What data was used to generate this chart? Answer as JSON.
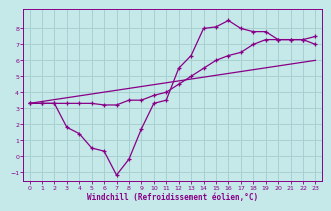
{
  "xlabel": "Windchill (Refroidissement éolien,°C)",
  "bg_color": "#c5e8e8",
  "line_color": "#880088",
  "grid_color": "#a8d0d0",
  "xlim": [
    -0.5,
    23.5
  ],
  "ylim": [
    -1.6,
    9.2
  ],
  "xticks": [
    0,
    1,
    2,
    3,
    4,
    5,
    6,
    7,
    8,
    9,
    10,
    11,
    12,
    13,
    14,
    15,
    16,
    17,
    18,
    19,
    20,
    21,
    22,
    23
  ],
  "yticks": [
    -1,
    0,
    1,
    2,
    3,
    4,
    5,
    6,
    7,
    8
  ],
  "series1_x": [
    0,
    1,
    2,
    3,
    4,
    5,
    6,
    7,
    8,
    9,
    10,
    11,
    12,
    13,
    14,
    15,
    16,
    17,
    18,
    19,
    20,
    21,
    22,
    23
  ],
  "series1_y": [
    3.3,
    3.3,
    3.3,
    1.8,
    1.4,
    0.5,
    0.3,
    -1.2,
    -0.2,
    1.7,
    3.3,
    3.5,
    5.5,
    6.3,
    8.0,
    8.1,
    8.5,
    8.0,
    7.8,
    7.8,
    7.3,
    7.3,
    7.3,
    7.0
  ],
  "series2_x": [
    0,
    1,
    2,
    3,
    4,
    5,
    6,
    7,
    8,
    9,
    10,
    11,
    12,
    13,
    14,
    15,
    16,
    17,
    18,
    19,
    20,
    21,
    22,
    23
  ],
  "series2_y": [
    3.3,
    3.3,
    3.3,
    3.3,
    3.3,
    3.3,
    3.2,
    3.2,
    3.5,
    3.5,
    3.8,
    4.0,
    4.5,
    5.0,
    5.5,
    6.0,
    6.3,
    6.5,
    7.0,
    7.3,
    7.3,
    7.3,
    7.3,
    7.5
  ],
  "series3_x": [
    0,
    23
  ],
  "series3_y": [
    3.3,
    6.0
  ]
}
